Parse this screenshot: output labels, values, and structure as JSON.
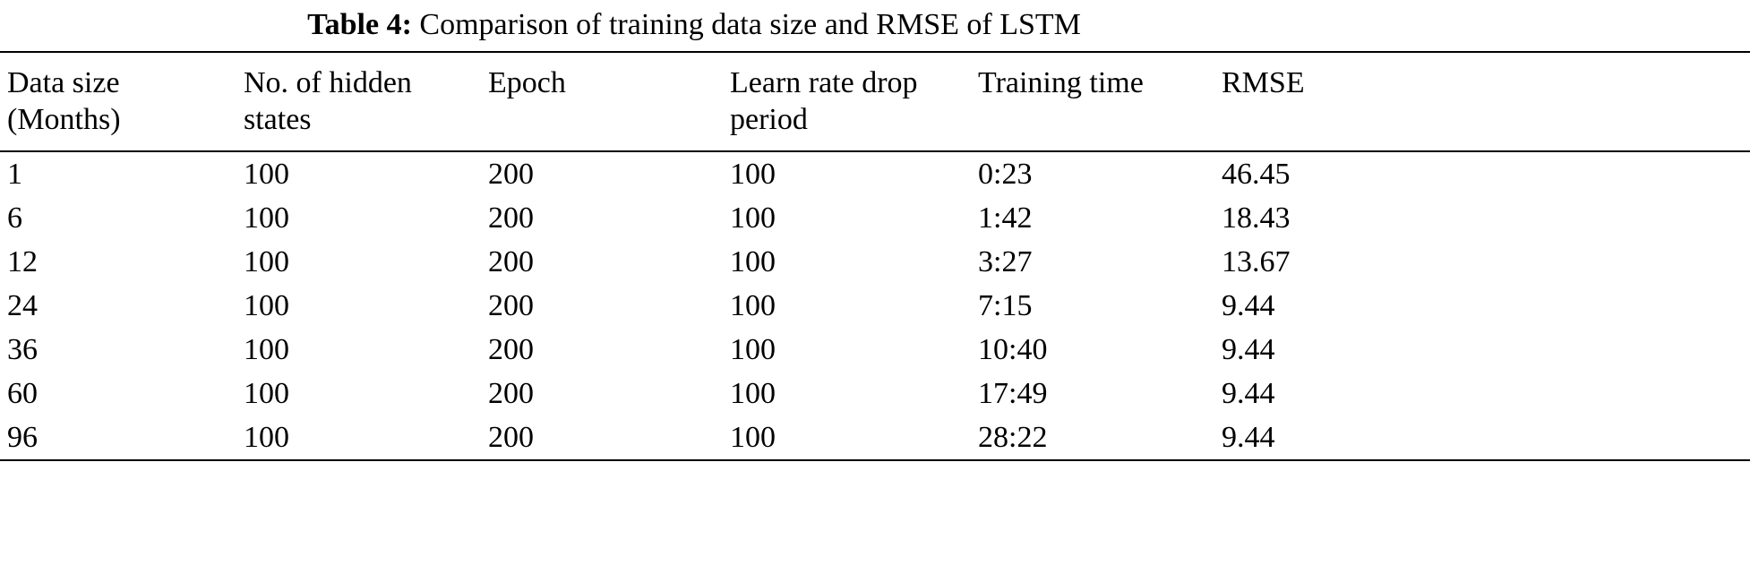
{
  "caption": {
    "label": "Table 4:",
    "text": " Comparison of training data size and RMSE of LSTM"
  },
  "table": {
    "columns": [
      {
        "key": "data-size",
        "label": "Data size\n(Months)"
      },
      {
        "key": "hidden-states",
        "label": "No. of hidden\nstates"
      },
      {
        "key": "epoch",
        "label": "Epoch"
      },
      {
        "key": "learn-rate-drop-period",
        "label": "Learn rate drop\nperiod"
      },
      {
        "key": "training-time",
        "label": "Training time"
      },
      {
        "key": "rmse",
        "label": "RMSE"
      }
    ],
    "rows": [
      [
        "1",
        "100",
        "200",
        "100",
        "0:23",
        "46.45"
      ],
      [
        "6",
        "100",
        "200",
        "100",
        "1:42",
        "18.43"
      ],
      [
        "12",
        "100",
        "200",
        "100",
        "3:27",
        "13.67"
      ],
      [
        "24",
        "100",
        "200",
        "100",
        "7:15",
        "9.44"
      ],
      [
        "36",
        "100",
        "200",
        "100",
        "10:40",
        "9.44"
      ],
      [
        "60",
        "100",
        "200",
        "100",
        "17:49",
        "9.44"
      ],
      [
        "96",
        "100",
        "200",
        "100",
        "28:22",
        "9.44"
      ]
    ]
  }
}
